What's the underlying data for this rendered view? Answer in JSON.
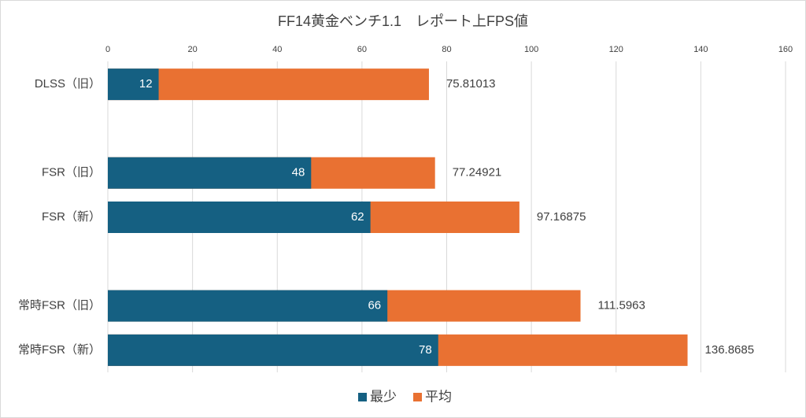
{
  "chart_data": {
    "type": "bar",
    "orientation": "horizontal",
    "overlap": true,
    "title": "FF14黄金ベンチ1.1　レポート上FPS値",
    "categories": [
      "DLSS（旧）",
      null,
      "FSR（旧）",
      "FSR（新）",
      null,
      "常時FSR（旧）",
      "常時FSR（新）"
    ],
    "series": [
      {
        "name": "最少",
        "color": "#156082",
        "values": [
          12,
          null,
          48,
          62,
          null,
          66,
          78
        ]
      },
      {
        "name": "平均",
        "color": "#e97132",
        "values": [
          75.81013,
          null,
          77.24921,
          97.16875,
          null,
          111.5963,
          136.8685
        ]
      }
    ],
    "xlim": [
      0,
      160
    ],
    "xticks": [
      0,
      20,
      40,
      60,
      80,
      100,
      120,
      140,
      160
    ],
    "grid": true,
    "legend": "bottom"
  }
}
